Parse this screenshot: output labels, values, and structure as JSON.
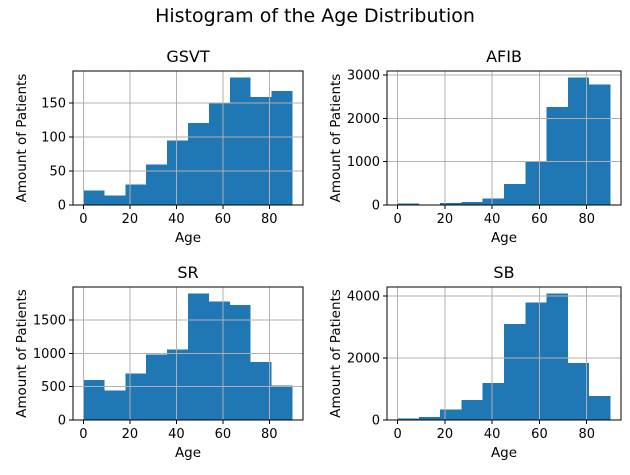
{
  "figure": {
    "title": "Histogram of the Age Distribution",
    "background_color": "#ffffff",
    "bar_color": "#1f77b4",
    "grid_color": "#b0b0b0",
    "spine_color": "#000000",
    "text_color": "#000000"
  },
  "chart_data": [
    {
      "type": "bar",
      "title": "GSVT",
      "xlabel": "Age",
      "ylabel": "Amount of Patients",
      "bin_edges": [
        0,
        9,
        18,
        27,
        36,
        45,
        54,
        63,
        72,
        81,
        90
      ],
      "values": [
        21,
        14,
        30,
        60,
        95,
        121,
        150,
        188,
        159,
        168
      ],
      "xticks": [
        0,
        20,
        40,
        60,
        80
      ],
      "yticks": [
        0,
        50,
        100,
        150
      ],
      "xlim": [
        -4.5,
        94.5
      ],
      "ylim": [
        0,
        197.4
      ],
      "grid": true,
      "legend": false
    },
    {
      "type": "bar",
      "title": "AFIB",
      "xlabel": "Age",
      "ylabel": "Amount of Patients",
      "bin_edges": [
        0,
        9,
        18,
        27,
        36,
        45,
        54,
        63,
        72,
        81,
        90
      ],
      "values": [
        30,
        10,
        45,
        70,
        150,
        490,
        1020,
        2260,
        2950,
        2790
      ],
      "xticks": [
        0,
        20,
        40,
        60,
        80
      ],
      "yticks": [
        0,
        1000,
        2000,
        3000
      ],
      "xlim": [
        -4.5,
        94.5
      ],
      "ylim": [
        0,
        3097.5
      ],
      "grid": true,
      "legend": false
    },
    {
      "type": "bar",
      "title": "SR",
      "xlabel": "Age",
      "ylabel": "Amount of Patients",
      "bin_edges": [
        0,
        9,
        18,
        27,
        36,
        45,
        54,
        63,
        72,
        81,
        90
      ],
      "values": [
        600,
        440,
        700,
        980,
        1060,
        1900,
        1775,
        1725,
        870,
        515
      ],
      "xticks": [
        0,
        20,
        40,
        60,
        80
      ],
      "yticks": [
        0,
        500,
        1000,
        1500
      ],
      "xlim": [
        -4.5,
        94.5
      ],
      "ylim": [
        0,
        1995
      ],
      "grid": true,
      "legend": false
    },
    {
      "type": "bar",
      "title": "SB",
      "xlabel": "Age",
      "ylabel": "Amount of Patients",
      "bin_edges": [
        0,
        9,
        18,
        27,
        36,
        45,
        54,
        63,
        72,
        81,
        90
      ],
      "values": [
        50,
        90,
        340,
        650,
        1200,
        3100,
        3790,
        4080,
        1830,
        780
      ],
      "xticks": [
        0,
        20,
        40,
        60,
        80
      ],
      "yticks": [
        0,
        2000,
        4000
      ],
      "xlim": [
        -4.5,
        94.5
      ],
      "ylim": [
        0,
        4284
      ],
      "grid": true,
      "legend": false
    }
  ]
}
